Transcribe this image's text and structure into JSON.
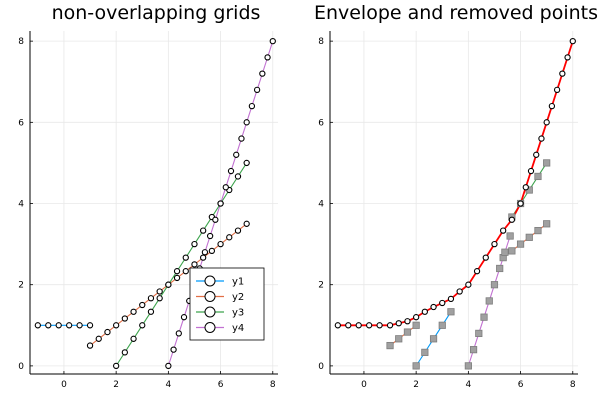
{
  "chart_data": [
    {
      "type": "line",
      "title": "non-overlapping grids",
      "xlabel": "",
      "ylabel": "",
      "xlim": [
        -1.3,
        8.2
      ],
      "ylim": [
        -0.2,
        8.25
      ],
      "xticks": [
        0,
        2,
        4,
        6,
        8
      ],
      "yticks": [
        0,
        2,
        4,
        6,
        8
      ],
      "tick_labels": {
        "x": [
          "0",
          "2",
          "4",
          "6",
          "8"
        ],
        "y": [
          "0",
          "2",
          "4",
          "6",
          "8"
        ]
      },
      "grid": true,
      "legend": {
        "position": "bottom-right",
        "entries": [
          "y1",
          "y2",
          "y3",
          "y4"
        ]
      },
      "series": [
        {
          "name": "y1",
          "color": "#009af9",
          "marker": "circle-white",
          "x": [
            -1.0,
            -0.6,
            -0.2,
            0.2,
            0.6,
            1.0
          ],
          "y": [
            1.0,
            1.0,
            1.0,
            1.0,
            1.0,
            1.0
          ]
        },
        {
          "name": "y2",
          "color": "#e26f46",
          "marker": "circle-white",
          "x": [
            1.0,
            1.333,
            1.667,
            2.0,
            2.333,
            2.667,
            3.0,
            3.333,
            3.667,
            4.0,
            4.333,
            4.667,
            5.0,
            5.333,
            5.667,
            6.0,
            6.333,
            6.667,
            7.0
          ],
          "y": [
            0.5,
            0.667,
            0.833,
            1.0,
            1.167,
            1.333,
            1.5,
            1.667,
            1.833,
            2.0,
            2.167,
            2.333,
            2.5,
            2.667,
            2.833,
            3.0,
            3.167,
            3.333,
            3.5
          ]
        },
        {
          "name": "y3",
          "color": "#3da44d",
          "marker": "circle-white",
          "x": [
            2.0,
            2.333,
            2.667,
            3.0,
            3.333,
            3.667,
            4.0,
            4.333,
            4.667,
            5.0,
            5.333,
            5.667,
            6.0,
            6.333,
            6.667,
            7.0
          ],
          "y": [
            0.0,
            0.333,
            0.667,
            1.0,
            1.333,
            1.667,
            2.0,
            2.333,
            2.667,
            3.0,
            3.333,
            3.667,
            4.0,
            4.333,
            4.667,
            5.0
          ]
        },
        {
          "name": "y4",
          "color": "#c271d2",
          "marker": "circle-white",
          "x": [
            4.0,
            4.2,
            4.4,
            4.6,
            4.8,
            5.0,
            5.2,
            5.4,
            5.6,
            5.8,
            6.0,
            6.2,
            6.4,
            6.6,
            6.8,
            7.0,
            7.2,
            7.4,
            7.6,
            7.8,
            8.0
          ],
          "y": [
            0.0,
            0.4,
            0.8,
            1.2,
            1.6,
            2.0,
            2.4,
            2.8,
            3.2,
            3.6,
            4.0,
            4.4,
            4.8,
            5.2,
            5.6,
            6.0,
            6.4,
            6.8,
            7.2,
            7.6,
            8.0
          ]
        }
      ]
    },
    {
      "type": "line",
      "title": "Envelope and removed points",
      "xlabel": "",
      "ylabel": "",
      "xlim": [
        -1.3,
        8.2
      ],
      "ylim": [
        -0.2,
        8.25
      ],
      "xticks": [
        0,
        2,
        4,
        6,
        8
      ],
      "yticks": [
        0,
        2,
        4,
        6,
        8
      ],
      "tick_labels": {
        "x": [
          "0",
          "2",
          "4",
          "6",
          "8"
        ],
        "y": [
          "0",
          "2",
          "4",
          "6",
          "8"
        ]
      },
      "grid": true,
      "legend": null,
      "series": [
        {
          "color": "#009af9",
          "marker": "square-gray",
          "x": [
            2.0,
            2.333,
            2.667,
            3.0,
            3.333
          ],
          "y": [
            0.0,
            0.333,
            0.667,
            1.0,
            1.333
          ]
        },
        {
          "color": "#e26f46",
          "marker": "square-gray",
          "x": [
            1.0,
            1.333,
            1.667,
            2.0
          ],
          "y": [
            0.5,
            0.667,
            0.833,
            1.0
          ]
        },
        {
          "color": "#3da44d",
          "marker": "square-gray",
          "x": [
            5.667,
            6.0,
            6.333,
            6.667,
            7.0
          ],
          "y": [
            3.667,
            4.0,
            4.333,
            4.667,
            5.0
          ]
        },
        {
          "color": "#e26f46",
          "marker": "square-gray",
          "x": [
            5.333,
            5.667,
            6.0,
            6.333,
            6.667,
            7.0
          ],
          "y": [
            2.667,
            2.833,
            3.0,
            3.167,
            3.333,
            3.5
          ]
        },
        {
          "color": "#c271d2",
          "marker": "square-gray",
          "x": [
            4.0,
            4.2,
            4.4,
            4.6,
            4.8,
            5.0,
            5.2,
            5.4,
            5.6
          ],
          "y": [
            0.0,
            0.4,
            0.8,
            1.2,
            1.6,
            2.0,
            2.4,
            2.8,
            3.2
          ]
        },
        {
          "color": "#ff0000",
          "marker": "circle-white",
          "x": [
            -1.0,
            -0.6,
            -0.2,
            0.2,
            0.6,
            1.0,
            1.333,
            1.667,
            2.0,
            2.333,
            2.667,
            3.0,
            3.333,
            3.667,
            4.0,
            4.333,
            4.667,
            5.0,
            5.333,
            5.667,
            6.0,
            6.2,
            6.4,
            6.6,
            6.8,
            7.0,
            7.2,
            7.4,
            7.6,
            7.8,
            8.0
          ],
          "y": [
            1.0,
            1.0,
            1.0,
            1.0,
            1.0,
            1.0,
            1.05,
            1.1,
            1.2,
            1.333,
            1.45,
            1.55,
            1.65,
            1.833,
            2.0,
            2.333,
            2.667,
            3.0,
            3.333,
            3.6,
            4.0,
            4.4,
            4.8,
            5.2,
            5.6,
            6.0,
            6.4,
            6.8,
            7.2,
            7.6,
            8.0
          ]
        }
      ]
    }
  ]
}
